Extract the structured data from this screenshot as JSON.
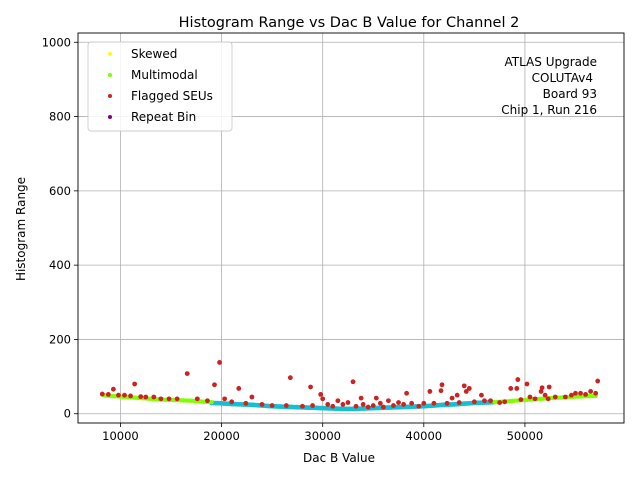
{
  "chart_data": {
    "type": "scatter",
    "title": "Histogram Range vs Dac B Value for Channel 2",
    "xlabel": "Dac B Value",
    "ylabel": "Histogram Range",
    "xlim": [
      5800,
      59800
    ],
    "ylim": [
      -25,
      1025
    ],
    "xticks": [
      10000,
      20000,
      30000,
      40000,
      50000
    ],
    "yticks": [
      0,
      200,
      400,
      600,
      800,
      1000
    ],
    "grid": true,
    "legend_position": "upper-left",
    "legend": [
      {
        "name": "Skewed",
        "color": "#ffff00"
      },
      {
        "name": "Multimodal",
        "color": "#7fff00"
      },
      {
        "name": "Flagged SEUs",
        "color": "#cc2222"
      },
      {
        "name": "Repeat Bin",
        "color": "#800080"
      }
    ],
    "annotation_lines": [
      "ATLAS Upgrade",
      "COLUTAv4",
      "Board 93",
      "Chip 1, Run 216"
    ],
    "colors": {
      "baseline": "#17becf"
    },
    "series": [
      {
        "name": "",
        "role": "baseline",
        "color": "#17becf",
        "points": [
          [
            19000,
            29
          ],
          [
            20000,
            28
          ],
          [
            21000,
            26
          ],
          [
            22000,
            25
          ],
          [
            23000,
            24
          ],
          [
            24000,
            22
          ],
          [
            25000,
            20
          ],
          [
            26000,
            19
          ],
          [
            27000,
            18
          ],
          [
            28000,
            17
          ],
          [
            29000,
            16
          ],
          [
            30000,
            15
          ],
          [
            31000,
            14
          ],
          [
            32000,
            13
          ],
          [
            33000,
            13
          ],
          [
            34000,
            14
          ],
          [
            35000,
            15
          ],
          [
            36000,
            16
          ],
          [
            37000,
            17
          ],
          [
            38000,
            18
          ],
          [
            39000,
            19
          ],
          [
            40000,
            20
          ],
          [
            41000,
            22
          ],
          [
            42000,
            24
          ],
          [
            43000,
            25
          ],
          [
            44000,
            27
          ],
          [
            45000,
            29
          ],
          [
            46000,
            30
          ],
          [
            47000,
            31
          ]
        ]
      },
      {
        "name": "Multimodal",
        "color": "#7fff00",
        "points": [
          [
            8300,
            50
          ],
          [
            9000,
            48
          ],
          [
            10000,
            46
          ],
          [
            11000,
            44
          ],
          [
            12000,
            42
          ],
          [
            13000,
            40
          ],
          [
            14000,
            38
          ],
          [
            15000,
            37
          ],
          [
            16000,
            36
          ],
          [
            17000,
            35
          ],
          [
            18000,
            33
          ],
          [
            19000,
            31
          ],
          [
            47000,
            31
          ],
          [
            48000,
            33
          ],
          [
            49000,
            35
          ],
          [
            50000,
            37
          ],
          [
            51000,
            39
          ],
          [
            52000,
            41
          ],
          [
            53000,
            43
          ],
          [
            54000,
            44
          ],
          [
            55000,
            46
          ],
          [
            56000,
            47
          ],
          [
            57000,
            48
          ]
        ]
      },
      {
        "name": "Flagged SEUs",
        "color": "#cc2222",
        "points": [
          [
            8200,
            53
          ],
          [
            8800,
            52
          ],
          [
            9300,
            66
          ],
          [
            9800,
            50
          ],
          [
            10400,
            50
          ],
          [
            11000,
            48
          ],
          [
            11400,
            80
          ],
          [
            12000,
            46
          ],
          [
            12500,
            45
          ],
          [
            13300,
            45
          ],
          [
            14000,
            40
          ],
          [
            14800,
            40
          ],
          [
            15600,
            40
          ],
          [
            16600,
            108
          ],
          [
            17600,
            40
          ],
          [
            18600,
            35
          ],
          [
            19300,
            78
          ],
          [
            19800,
            138
          ],
          [
            20300,
            40
          ],
          [
            21000,
            32
          ],
          [
            21700,
            68
          ],
          [
            22400,
            28
          ],
          [
            23000,
            45
          ],
          [
            24000,
            25
          ],
          [
            25000,
            22
          ],
          [
            26400,
            22
          ],
          [
            26800,
            97
          ],
          [
            28000,
            20
          ],
          [
            28800,
            72
          ],
          [
            29000,
            22
          ],
          [
            29800,
            52
          ],
          [
            30000,
            40
          ],
          [
            30500,
            25
          ],
          [
            31000,
            20
          ],
          [
            31500,
            35
          ],
          [
            32000,
            25
          ],
          [
            32500,
            30
          ],
          [
            33000,
            86
          ],
          [
            33300,
            20
          ],
          [
            33800,
            42
          ],
          [
            34000,
            25
          ],
          [
            34500,
            18
          ],
          [
            35000,
            22
          ],
          [
            35300,
            42
          ],
          [
            35700,
            28
          ],
          [
            36000,
            18
          ],
          [
            36500,
            35
          ],
          [
            37000,
            22
          ],
          [
            37500,
            30
          ],
          [
            38000,
            25
          ],
          [
            38300,
            55
          ],
          [
            38800,
            28
          ],
          [
            39500,
            20
          ],
          [
            40000,
            28
          ],
          [
            40600,
            60
          ],
          [
            41000,
            28
          ],
          [
            41700,
            62
          ],
          [
            41800,
            78
          ],
          [
            42300,
            28
          ],
          [
            42800,
            42
          ],
          [
            43300,
            50
          ],
          [
            43500,
            30
          ],
          [
            44000,
            75
          ],
          [
            44200,
            60
          ],
          [
            44500,
            68
          ],
          [
            45000,
            32
          ],
          [
            45700,
            50
          ],
          [
            46000,
            35
          ],
          [
            46600,
            35
          ],
          [
            47500,
            30
          ],
          [
            48000,
            32
          ],
          [
            48600,
            68
          ],
          [
            49200,
            68
          ],
          [
            49300,
            92
          ],
          [
            49600,
            38
          ],
          [
            50200,
            80
          ],
          [
            50500,
            45
          ],
          [
            51000,
            40
          ],
          [
            51600,
            60
          ],
          [
            51700,
            70
          ],
          [
            52000,
            50
          ],
          [
            52300,
            40
          ],
          [
            52400,
            72
          ],
          [
            53000,
            45
          ],
          [
            54000,
            45
          ],
          [
            54600,
            50
          ],
          [
            55000,
            55
          ],
          [
            55500,
            55
          ],
          [
            56000,
            52
          ],
          [
            56500,
            60
          ],
          [
            57000,
            55
          ],
          [
            57200,
            88
          ]
        ]
      }
    ]
  }
}
